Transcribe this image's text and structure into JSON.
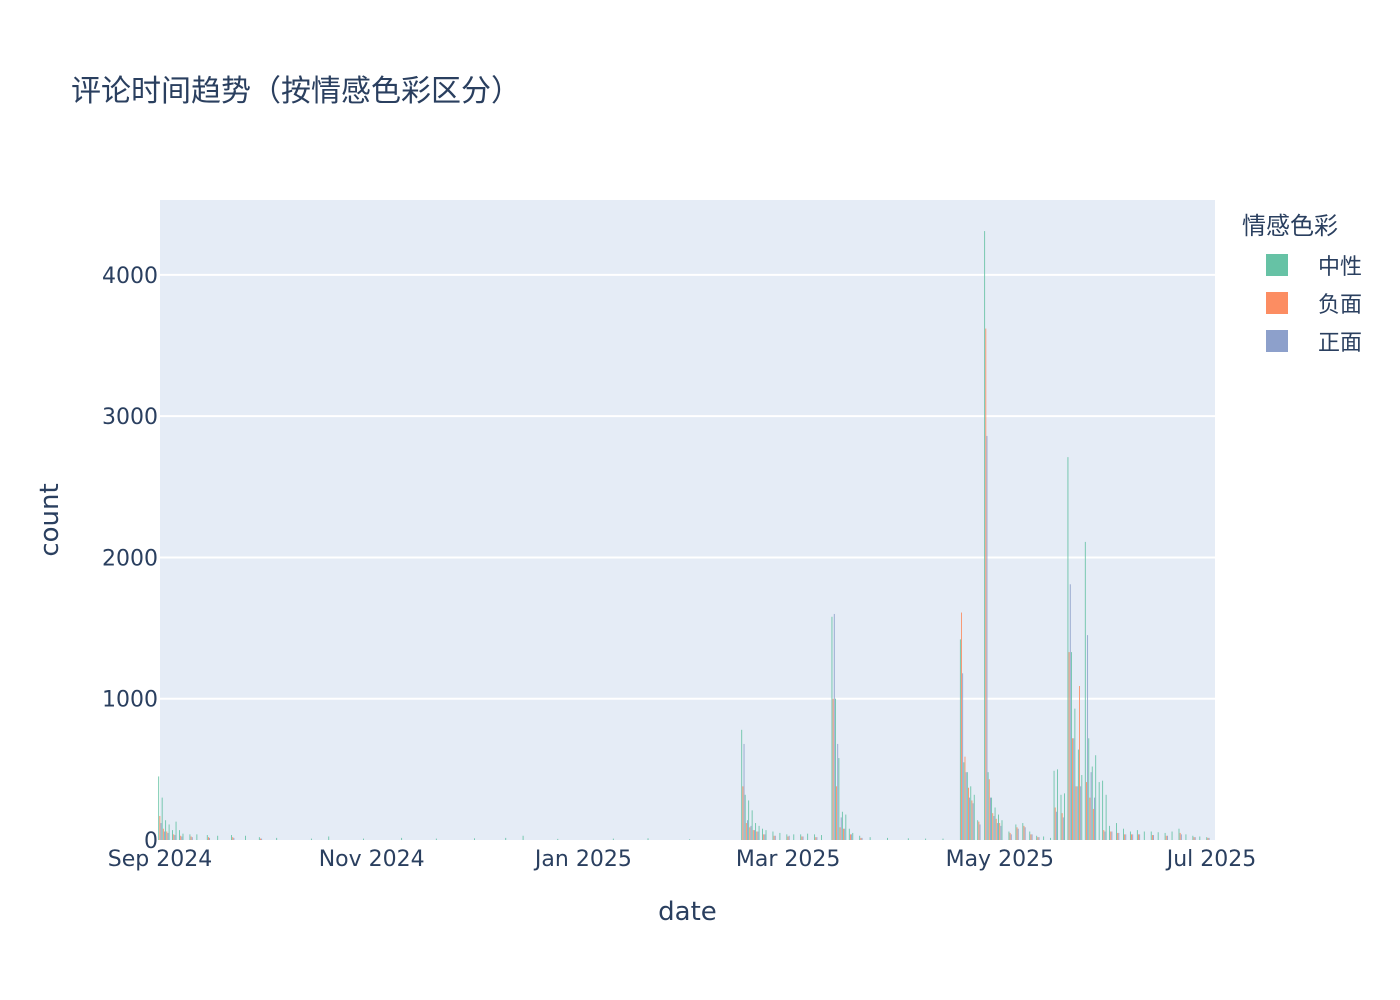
{
  "chart_data": {
    "type": "bar",
    "barmode": "group",
    "title": "评论时间趋势（按情感色彩区分）",
    "xlabel": "date",
    "ylabel": "count",
    "xlim": [
      "2024-09-01",
      "2025-07-02"
    ],
    "ylim": [
      0,
      4530
    ],
    "x_ticks": [
      {
        "date": "2024-09-01",
        "label": "Sep 2024"
      },
      {
        "date": "2024-11-01",
        "label": "Nov 2024"
      },
      {
        "date": "2025-01-01",
        "label": "Jan 2025"
      },
      {
        "date": "2025-03-01",
        "label": "Mar 2025"
      },
      {
        "date": "2025-05-01",
        "label": "May 2025"
      },
      {
        "date": "2025-07-01",
        "label": "Jul 2025"
      }
    ],
    "y_ticks": [
      0,
      1000,
      2000,
      3000,
      4000
    ],
    "legend": {
      "title": "情感色彩",
      "position": "right"
    },
    "series": [
      {
        "name": "中性",
        "color": "#66c2a5",
        "points": [
          [
            "2024-09-01",
            450
          ],
          [
            "2024-09-02",
            300
          ],
          [
            "2024-09-03",
            140
          ],
          [
            "2024-09-04",
            110
          ],
          [
            "2024-09-05",
            70
          ],
          [
            "2024-09-06",
            130
          ],
          [
            "2024-09-07",
            70
          ],
          [
            "2024-09-08",
            45
          ],
          [
            "2024-09-10",
            40
          ],
          [
            "2024-09-12",
            40
          ],
          [
            "2024-09-15",
            35
          ],
          [
            "2024-09-18",
            30
          ],
          [
            "2024-09-22",
            35
          ],
          [
            "2024-09-26",
            30
          ],
          [
            "2024-09-30",
            20
          ],
          [
            "2024-10-05",
            15
          ],
          [
            "2024-10-15",
            10
          ],
          [
            "2024-10-20",
            25
          ],
          [
            "2024-10-30",
            10
          ],
          [
            "2024-11-10",
            15
          ],
          [
            "2024-11-20",
            10
          ],
          [
            "2024-12-01",
            12
          ],
          [
            "2024-12-10",
            15
          ],
          [
            "2024-12-15",
            30
          ],
          [
            "2024-12-25",
            8
          ],
          [
            "2025-01-10",
            10
          ],
          [
            "2025-01-20",
            12
          ],
          [
            "2025-02-01",
            5
          ],
          [
            "2025-02-16",
            780
          ],
          [
            "2025-02-17",
            320
          ],
          [
            "2025-02-18",
            280
          ],
          [
            "2025-02-19",
            210
          ],
          [
            "2025-02-20",
            120
          ],
          [
            "2025-02-21",
            100
          ],
          [
            "2025-02-22",
            80
          ],
          [
            "2025-02-23",
            70
          ],
          [
            "2025-02-25",
            60
          ],
          [
            "2025-02-27",
            50
          ],
          [
            "2025-03-01",
            40
          ],
          [
            "2025-03-03",
            40
          ],
          [
            "2025-03-05",
            40
          ],
          [
            "2025-03-07",
            45
          ],
          [
            "2025-03-09",
            40
          ],
          [
            "2025-03-11",
            35
          ],
          [
            "2025-03-14",
            1580
          ],
          [
            "2025-03-15",
            1000
          ],
          [
            "2025-03-16",
            580
          ],
          [
            "2025-03-17",
            200
          ],
          [
            "2025-03-18",
            180
          ],
          [
            "2025-03-19",
            80
          ],
          [
            "2025-03-20",
            50
          ],
          [
            "2025-03-22",
            30
          ],
          [
            "2025-03-25",
            20
          ],
          [
            "2025-03-30",
            15
          ],
          [
            "2025-04-05",
            12
          ],
          [
            "2025-04-10",
            10
          ],
          [
            "2025-04-15",
            10
          ],
          [
            "2025-04-20",
            1420
          ],
          [
            "2025-04-21",
            550
          ],
          [
            "2025-04-22",
            480
          ],
          [
            "2025-04-23",
            380
          ],
          [
            "2025-04-24",
            320
          ],
          [
            "2025-04-25",
            140
          ],
          [
            "2025-04-27",
            4310
          ],
          [
            "2025-04-28",
            480
          ],
          [
            "2025-04-29",
            300
          ],
          [
            "2025-04-30",
            230
          ],
          [
            "2025-05-01",
            180
          ],
          [
            "2025-05-02",
            140
          ],
          [
            "2025-05-04",
            60
          ],
          [
            "2025-05-06",
            110
          ],
          [
            "2025-05-08",
            120
          ],
          [
            "2025-05-10",
            60
          ],
          [
            "2025-05-12",
            30
          ],
          [
            "2025-05-14",
            25
          ],
          [
            "2025-05-16",
            15
          ],
          [
            "2025-05-17",
            490
          ],
          [
            "2025-05-18",
            500
          ],
          [
            "2025-05-19",
            320
          ],
          [
            "2025-05-20",
            330
          ],
          [
            "2025-05-21",
            2710
          ],
          [
            "2025-05-22",
            1330
          ],
          [
            "2025-05-23",
            930
          ],
          [
            "2025-05-24",
            640
          ],
          [
            "2025-05-25",
            460
          ],
          [
            "2025-05-26",
            2110
          ],
          [
            "2025-05-27",
            720
          ],
          [
            "2025-05-28",
            520
          ],
          [
            "2025-05-29",
            600
          ],
          [
            "2025-05-30",
            410
          ],
          [
            "2025-05-31",
            420
          ],
          [
            "2025-06-01",
            320
          ],
          [
            "2025-06-02",
            100
          ],
          [
            "2025-06-04",
            120
          ],
          [
            "2025-06-06",
            80
          ],
          [
            "2025-06-08",
            60
          ],
          [
            "2025-06-10",
            70
          ],
          [
            "2025-06-12",
            60
          ],
          [
            "2025-06-14",
            60
          ],
          [
            "2025-06-16",
            55
          ],
          [
            "2025-06-18",
            50
          ],
          [
            "2025-06-20",
            60
          ],
          [
            "2025-06-22",
            80
          ],
          [
            "2025-06-24",
            40
          ],
          [
            "2025-06-26",
            30
          ],
          [
            "2025-06-28",
            25
          ],
          [
            "2025-06-30",
            20
          ]
        ]
      },
      {
        "name": "负面",
        "color": "#fc8d62",
        "points": [
          [
            "2024-09-01",
            170
          ],
          [
            "2024-09-02",
            80
          ],
          [
            "2024-09-03",
            60
          ],
          [
            "2024-09-05",
            40
          ],
          [
            "2024-09-07",
            30
          ],
          [
            "2024-09-10",
            25
          ],
          [
            "2024-09-15",
            20
          ],
          [
            "2024-09-22",
            20
          ],
          [
            "2024-09-30",
            10
          ],
          [
            "2025-02-16",
            380
          ],
          [
            "2025-02-17",
            120
          ],
          [
            "2025-02-18",
            90
          ],
          [
            "2025-02-19",
            70
          ],
          [
            "2025-02-20",
            60
          ],
          [
            "2025-02-22",
            40
          ],
          [
            "2025-02-25",
            30
          ],
          [
            "2025-03-01",
            25
          ],
          [
            "2025-03-05",
            25
          ],
          [
            "2025-03-09",
            20
          ],
          [
            "2025-03-14",
            1000
          ],
          [
            "2025-03-15",
            380
          ],
          [
            "2025-03-16",
            90
          ],
          [
            "2025-03-17",
            80
          ],
          [
            "2025-03-19",
            40
          ],
          [
            "2025-03-22",
            15
          ],
          [
            "2025-04-20",
            1610
          ],
          [
            "2025-04-21",
            590
          ],
          [
            "2025-04-22",
            370
          ],
          [
            "2025-04-23",
            280
          ],
          [
            "2025-04-25",
            130
          ],
          [
            "2025-04-27",
            3620
          ],
          [
            "2025-04-28",
            430
          ],
          [
            "2025-04-29",
            190
          ],
          [
            "2025-04-30",
            150
          ],
          [
            "2025-05-01",
            120
          ],
          [
            "2025-05-04",
            50
          ],
          [
            "2025-05-06",
            90
          ],
          [
            "2025-05-08",
            100
          ],
          [
            "2025-05-10",
            40
          ],
          [
            "2025-05-12",
            20
          ],
          [
            "2025-05-17",
            230
          ],
          [
            "2025-05-19",
            190
          ],
          [
            "2025-05-21",
            1330
          ],
          [
            "2025-05-22",
            720
          ],
          [
            "2025-05-23",
            380
          ],
          [
            "2025-05-24",
            1090
          ],
          [
            "2025-05-26",
            410
          ],
          [
            "2025-05-27",
            300
          ],
          [
            "2025-05-28",
            220
          ],
          [
            "2025-05-31",
            70
          ],
          [
            "2025-06-02",
            60
          ],
          [
            "2025-06-04",
            50
          ],
          [
            "2025-06-06",
            40
          ],
          [
            "2025-06-08",
            40
          ],
          [
            "2025-06-10",
            40
          ],
          [
            "2025-06-14",
            35
          ],
          [
            "2025-06-18",
            30
          ],
          [
            "2025-06-22",
            50
          ],
          [
            "2025-06-26",
            20
          ],
          [
            "2025-06-30",
            15
          ]
        ]
      },
      {
        "name": "正面",
        "color": "#8da0cb",
        "points": [
          [
            "2024-09-01",
            120
          ],
          [
            "2024-09-02",
            60
          ],
          [
            "2024-09-03",
            50
          ],
          [
            "2024-09-05",
            35
          ],
          [
            "2024-09-07",
            25
          ],
          [
            "2024-09-10",
            20
          ],
          [
            "2024-09-15",
            15
          ],
          [
            "2024-09-22",
            15
          ],
          [
            "2024-09-30",
            10
          ],
          [
            "2025-02-16",
            680
          ],
          [
            "2025-02-17",
            140
          ],
          [
            "2025-02-18",
            100
          ],
          [
            "2025-02-19",
            70
          ],
          [
            "2025-02-20",
            60
          ],
          [
            "2025-02-22",
            40
          ],
          [
            "2025-02-25",
            30
          ],
          [
            "2025-03-01",
            30
          ],
          [
            "2025-03-05",
            25
          ],
          [
            "2025-03-09",
            20
          ],
          [
            "2025-03-14",
            1600
          ],
          [
            "2025-03-15",
            680
          ],
          [
            "2025-03-16",
            160
          ],
          [
            "2025-03-17",
            80
          ],
          [
            "2025-03-19",
            40
          ],
          [
            "2025-03-22",
            15
          ],
          [
            "2025-04-20",
            1180
          ],
          [
            "2025-04-21",
            480
          ],
          [
            "2025-04-22",
            300
          ],
          [
            "2025-04-23",
            260
          ],
          [
            "2025-04-25",
            110
          ],
          [
            "2025-04-27",
            2860
          ],
          [
            "2025-04-28",
            300
          ],
          [
            "2025-04-29",
            170
          ],
          [
            "2025-04-30",
            120
          ],
          [
            "2025-05-01",
            100
          ],
          [
            "2025-05-04",
            40
          ],
          [
            "2025-05-06",
            80
          ],
          [
            "2025-05-08",
            90
          ],
          [
            "2025-05-10",
            40
          ],
          [
            "2025-05-12",
            20
          ],
          [
            "2025-05-17",
            200
          ],
          [
            "2025-05-19",
            160
          ],
          [
            "2025-05-21",
            1810
          ],
          [
            "2025-05-22",
            720
          ],
          [
            "2025-05-23",
            380
          ],
          [
            "2025-05-24",
            380
          ],
          [
            "2025-05-26",
            1450
          ],
          [
            "2025-05-27",
            480
          ],
          [
            "2025-05-28",
            300
          ],
          [
            "2025-05-31",
            60
          ],
          [
            "2025-06-02",
            60
          ],
          [
            "2025-06-04",
            50
          ],
          [
            "2025-06-06",
            40
          ],
          [
            "2025-06-08",
            40
          ],
          [
            "2025-06-10",
            40
          ],
          [
            "2025-06-14",
            35
          ],
          [
            "2025-06-18",
            30
          ],
          [
            "2025-06-22",
            40
          ],
          [
            "2025-06-26",
            20
          ],
          [
            "2025-06-30",
            15
          ]
        ]
      }
    ]
  }
}
